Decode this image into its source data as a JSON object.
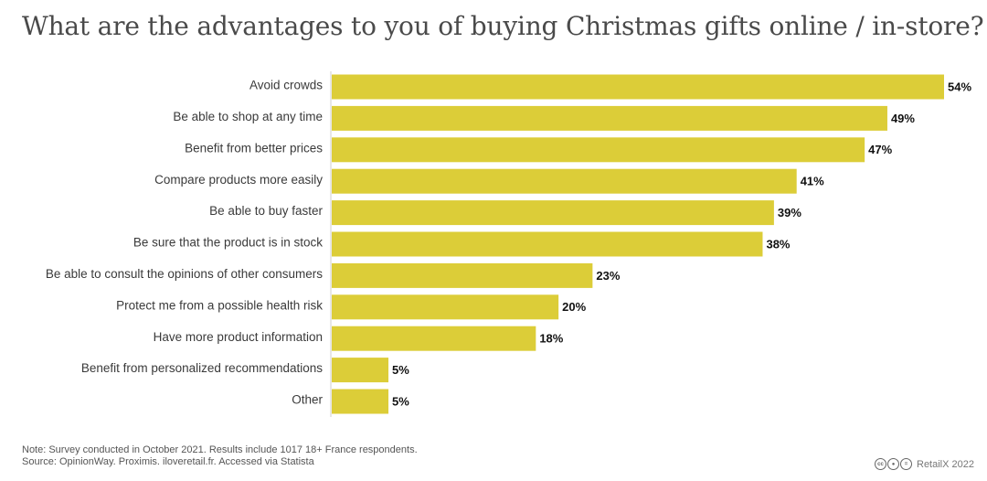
{
  "title": "What are the advantages to you of buying Christmas gifts online / in-store?",
  "chart_data": {
    "type": "bar",
    "orientation": "horizontal",
    "categories": [
      "Avoid crowds",
      "Be able to shop at any time",
      "Benefit from better prices",
      "Compare products more easily",
      "Be able to buy faster",
      "Be sure that the product is in stock",
      "Be able to consult the opinions of other consumers",
      "Protect me from a possible health risk",
      "Have more product information",
      "Benefit from personalized recommendations",
      "Other"
    ],
    "values": [
      54,
      49,
      47,
      41,
      39,
      38,
      23,
      20,
      18,
      5,
      5
    ],
    "value_labels": [
      "54%",
      "49%",
      "47%",
      "41%",
      "39%",
      "38%",
      "23%",
      "20%",
      "18%",
      "5%",
      "5%"
    ],
    "xlim": [
      0,
      54
    ],
    "bar_color": "#dccd38",
    "grid": false
  },
  "footnote": {
    "note": "Note: Survey conducted in October 2021. Results include 1017 18+ France respondents.",
    "source": "Source: OpinionWay. Proximis. iloveretail.fr. Accessed via Statista"
  },
  "credit": {
    "license_icons": [
      "cc-icon",
      "by-icon",
      "nd-icon"
    ],
    "text": "RetailX 2022"
  }
}
